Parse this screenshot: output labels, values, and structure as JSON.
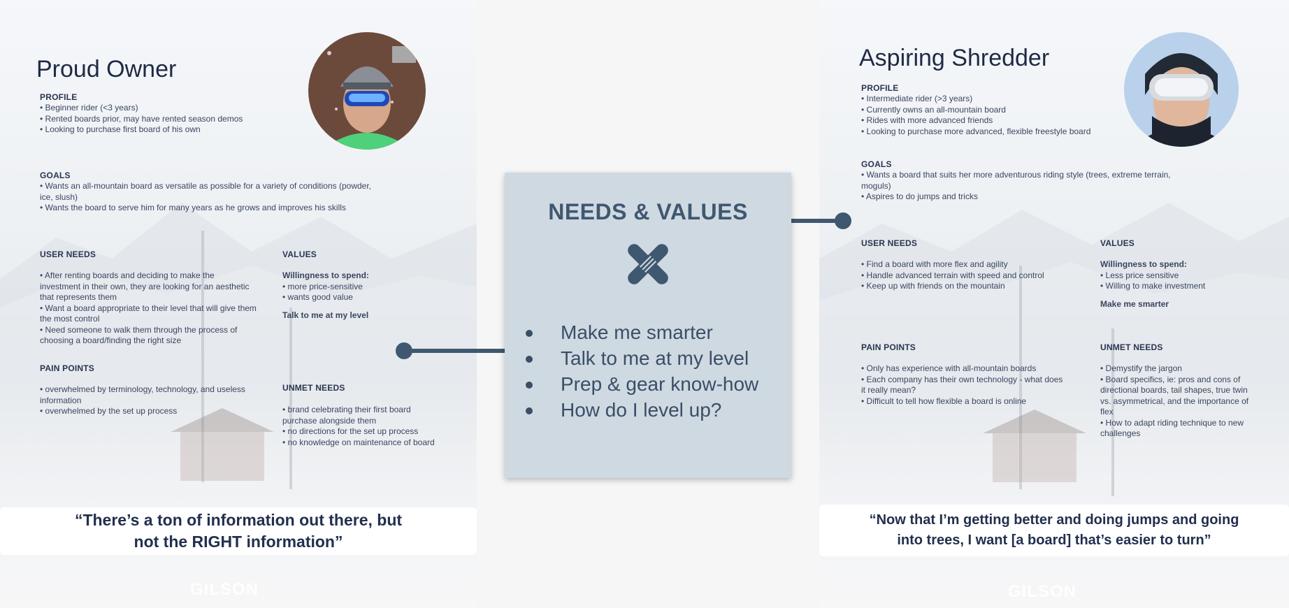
{
  "left": {
    "title": "Proud Owner",
    "profile_head": "PROFILE",
    "profile": [
      "• Beginner rider (<3 years)",
      "• Rented boards prior, may have rented season demos",
      "• Looking to purchase first board of his own"
    ],
    "goals_head": "GOALS",
    "goals": [
      "• Wants an all-mountain board as versatile as possible for a variety of conditions (powder, ice, slush)",
      "• Wants the board to serve him for many years as he grows and improves his skills"
    ],
    "user_needs_head": "USER NEEDS",
    "user_needs": [
      "• After renting boards and deciding to make the investment in their own, they are looking for an aesthetic that represents them",
      "• Want a board appropriate to their level that will give them the most control",
      "• Need someone to walk them through the process of choosing a board/finding the right size"
    ],
    "values_head": "VALUES",
    "values_spend": "Willingness to spend:",
    "values": [
      "• more price-sensitive",
      "• wants good value"
    ],
    "values_tagline": "Talk to me at my level",
    "pain_points_head": "PAIN POINTS",
    "pain_points": [
      "• overwhelmed by terminology, technology, and useless information",
      "• overwhelmed by the set up process"
    ],
    "unmet_needs_head": "UNMET NEEDS",
    "unmet_needs": [
      "• brand celebrating their first board purchase alongside them",
      "• no directions for the set up process",
      "• no knowledge on maintenance of board"
    ],
    "quote_line1": "“There’s a ton of information out there, but",
    "quote_line2": "not the RIGHT information”",
    "brand": "GILSON"
  },
  "center": {
    "title": "NEEDS & VALUES",
    "items": [
      "Make me smarter",
      "Talk to me at my level",
      "Prep & gear know-how",
      "How do I level up?"
    ],
    "icon": "tools-cross-icon"
  },
  "right": {
    "title": "Aspiring Shredder",
    "profile_head": "PROFILE",
    "profile": [
      "• Intermediate rider (>3 years)",
      "• Currently owns an all-mountain board",
      "• Rides with more advanced friends",
      "• Looking to purchase more advanced, flexible freestyle board"
    ],
    "goals_head": "GOALS",
    "goals": [
      "• Wants a board that suits her more adventurous riding style (trees, extreme terrain, moguls)",
      "• Aspires to do jumps and tricks"
    ],
    "user_needs_head": "USER NEEDS",
    "user_needs": [
      "• Find a board with more flex and agility",
      "• Handle advanced terrain with speed and control",
      "• Keep up with friends on the mountain"
    ],
    "values_head": "VALUES",
    "values_spend": "Willingness to spend:",
    "values": [
      "• Less price sensitive",
      "• Willing to make investment"
    ],
    "values_tagline": "Make me smarter",
    "pain_points_head": "PAIN POINTS",
    "pain_points": [
      "• Only has experience with all-mountain boards",
      "• Each company has their own technology - what does it really mean?",
      "• Difficult to tell how flexible a board is online"
    ],
    "unmet_needs_head": "UNMET NEEDS",
    "unmet_needs": [
      "• Demystify the jargon",
      "• Board specifics, ie: pros and cons of directional boards, tail shapes, true twin vs. asymmetrical, and the importance of flex",
      "• How to adapt riding technique to new challenges"
    ],
    "quote_line1": "“Now that I’m getting better and doing jumps and going",
    "quote_line2": "into trees, I want [a board] that’s easier to turn”",
    "brand": "GILSON"
  }
}
